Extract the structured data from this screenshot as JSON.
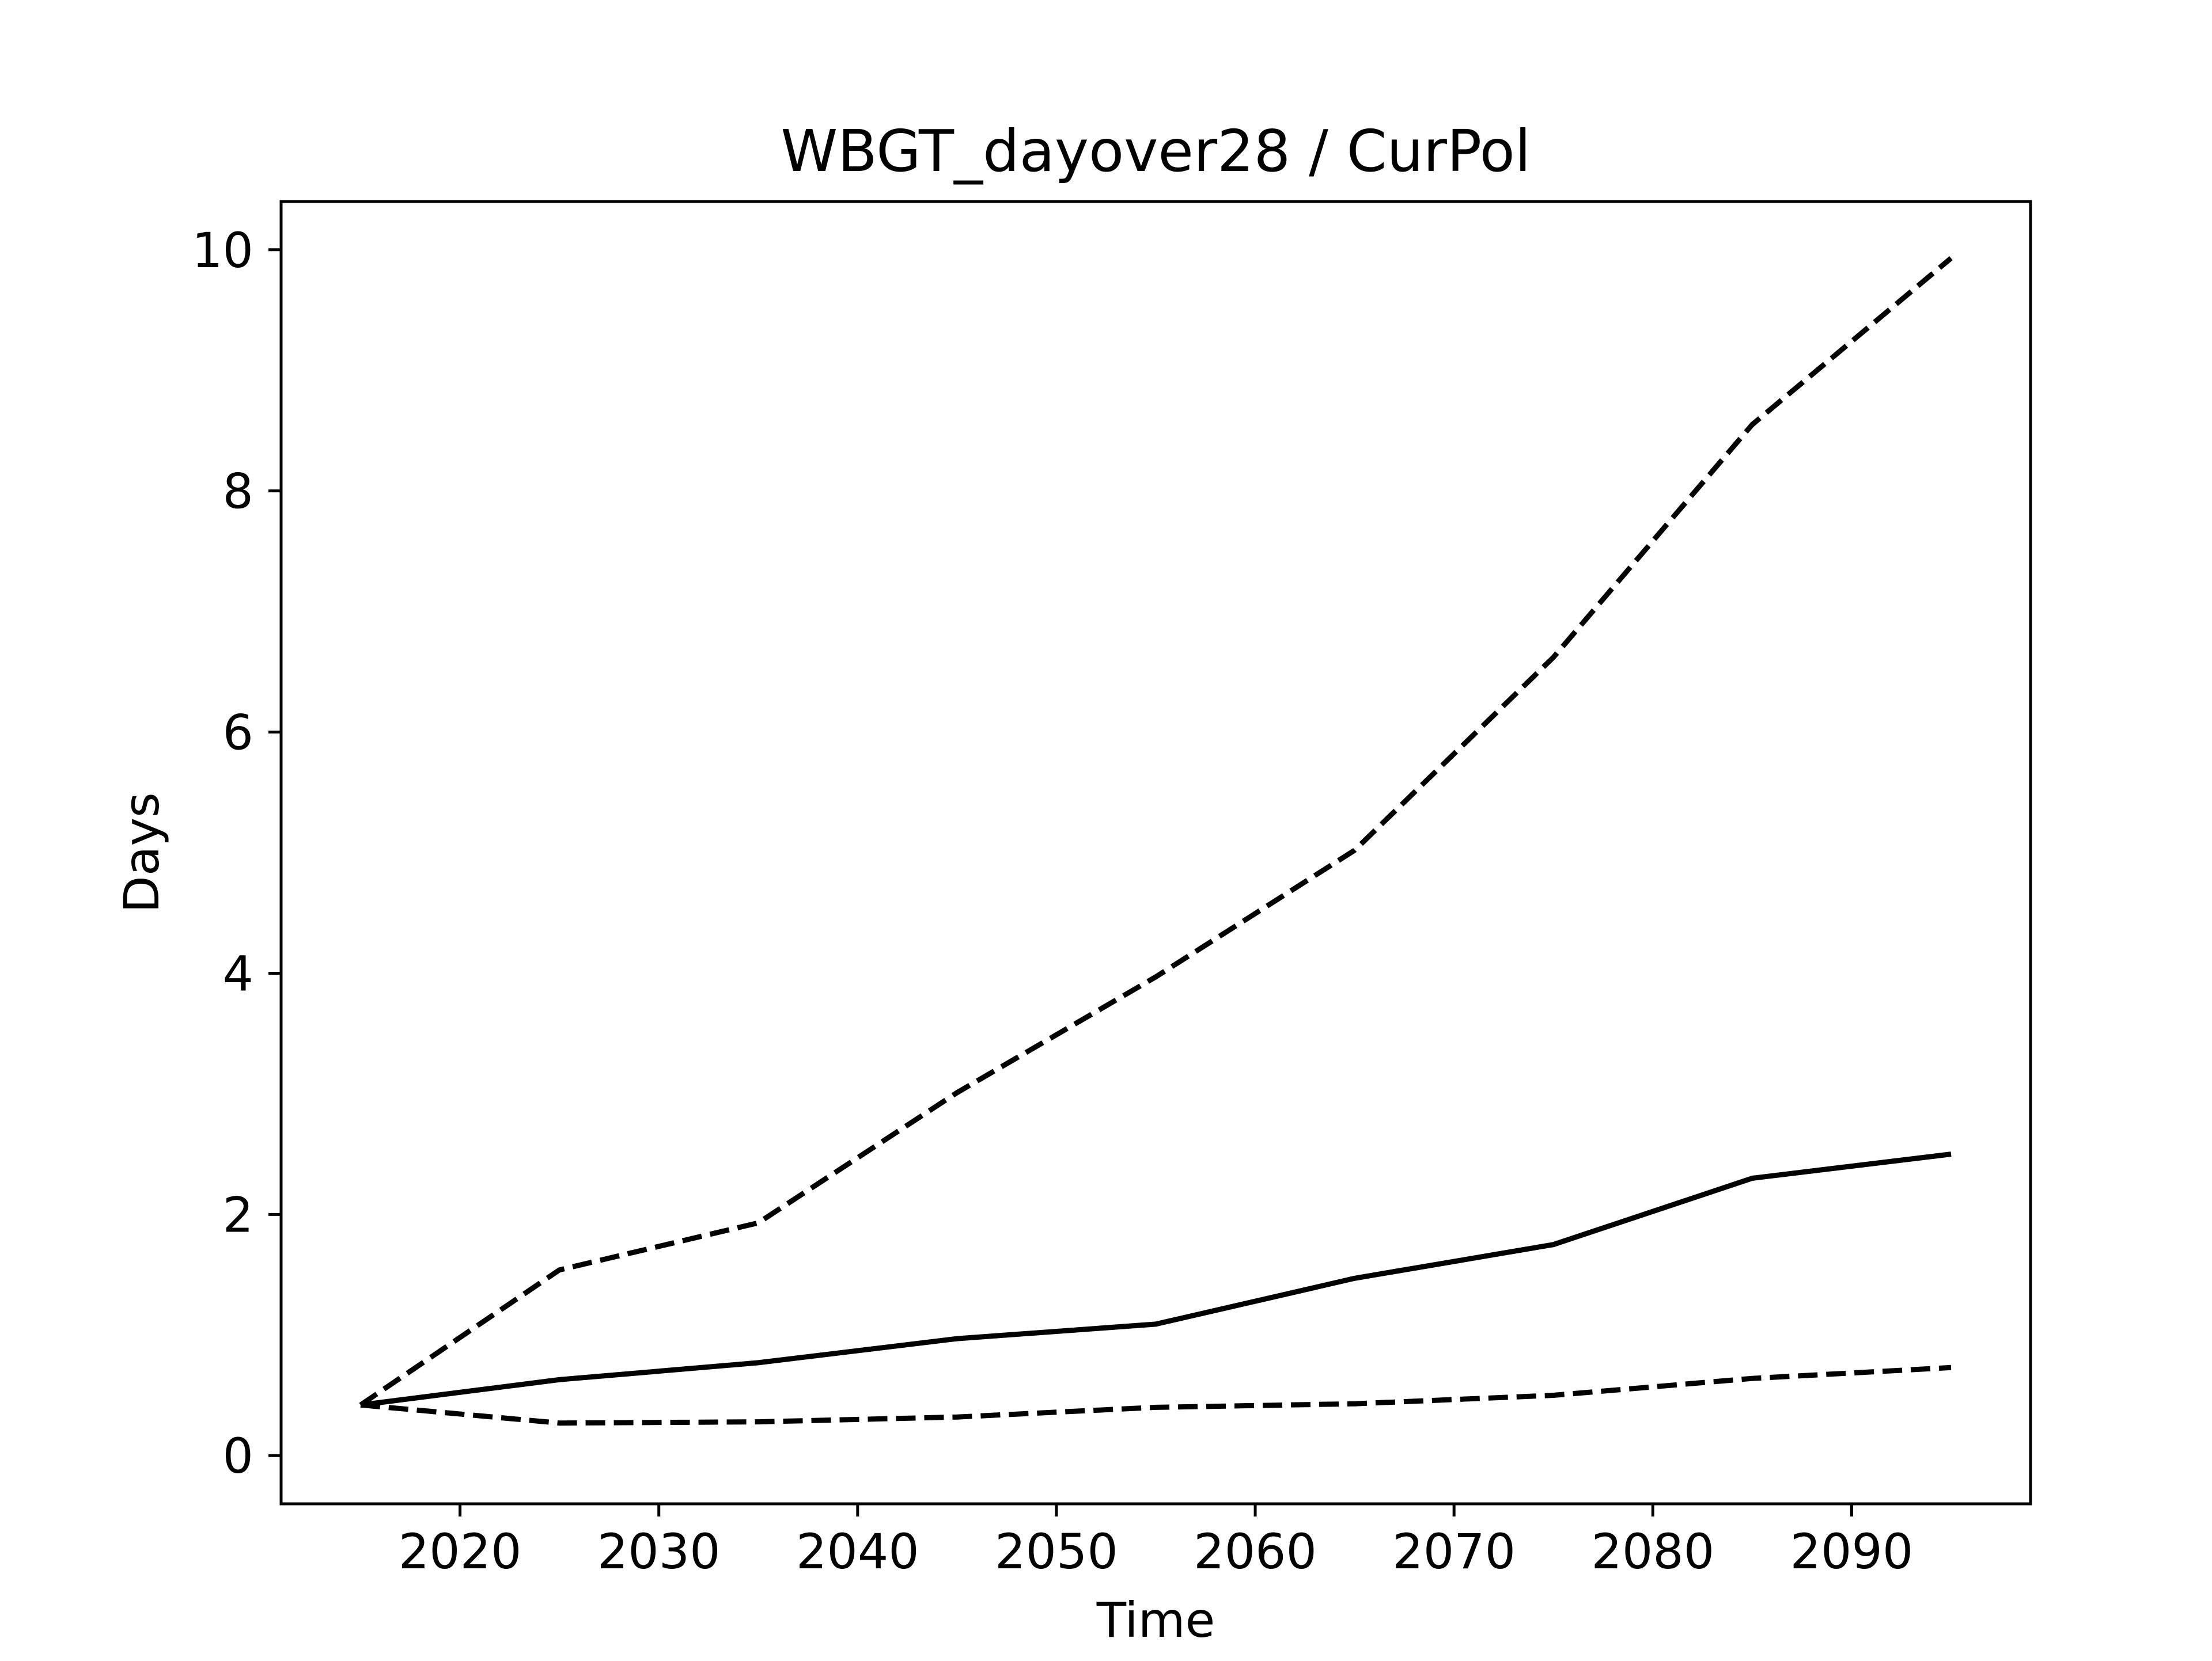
{
  "chart_data": {
    "type": "line",
    "title": "WBGT_dayover28 / CurPol",
    "xlabel": "Time",
    "ylabel": "Days",
    "xlim": [
      2011,
      2099
    ],
    "ylim": [
      -0.4,
      10.4
    ],
    "xticks": [
      2020,
      2030,
      2040,
      2050,
      2060,
      2070,
      2080,
      2090
    ],
    "yticks": [
      0,
      2,
      4,
      6,
      8,
      10
    ],
    "xtick_labels": [
      "2020",
      "2030",
      "2040",
      "2050",
      "2060",
      "2070",
      "2080",
      "2090"
    ],
    "ytick_labels": [
      "0",
      "2",
      "4",
      "6",
      "8",
      "10"
    ],
    "grid": false,
    "line_color": "#000000",
    "x": [
      2015,
      2025,
      2035,
      2045,
      2055,
      2065,
      2075,
      2085,
      2095
    ],
    "series": [
      {
        "style": "dashed",
        "values": [
          0.42,
          1.54,
          1.93,
          3.01,
          3.97,
          5.02,
          6.62,
          8.55,
          9.93
        ]
      },
      {
        "style": "solid",
        "values": [
          0.42,
          0.63,
          0.77,
          0.97,
          1.09,
          1.47,
          1.75,
          2.3,
          2.5
        ]
      },
      {
        "style": "dashed",
        "values": [
          0.42,
          0.27,
          0.28,
          0.32,
          0.4,
          0.43,
          0.5,
          0.64,
          0.73
        ]
      }
    ]
  }
}
